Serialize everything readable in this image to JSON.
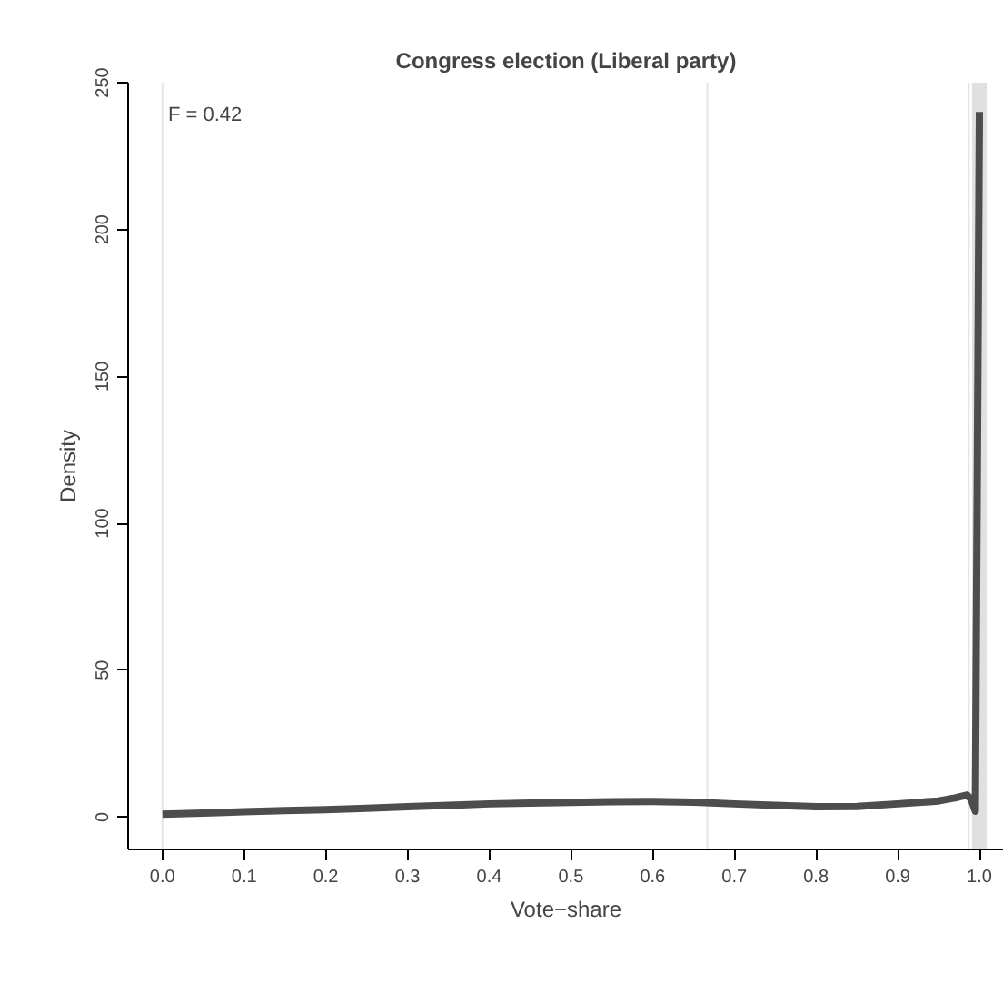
{
  "chart_data": {
    "type": "line",
    "title": "Congress election (Liberal party)",
    "xlabel": "Vote−share",
    "ylabel": "Density",
    "x": [
      0.0,
      0.05,
      0.1,
      0.15,
      0.2,
      0.25,
      0.3,
      0.35,
      0.4,
      0.45,
      0.5,
      0.55,
      0.6,
      0.65,
      0.7,
      0.75,
      0.8,
      0.85,
      0.9,
      0.95,
      0.97,
      0.985,
      0.99,
      0.995,
      1.0
    ],
    "series": [
      {
        "color": "#4d4d4d",
        "values": [
          1,
          1.4,
          1.8,
          2.2,
          2.5,
          3,
          3.5,
          4,
          4.5,
          4.8,
          5,
          5.2,
          5.3,
          5.1,
          4.5,
          4,
          3.5,
          3.6,
          4.5,
          5.5,
          6.5,
          7.5,
          6,
          2,
          240
        ]
      }
    ],
    "xlim": [
      -0.042,
      1.03
    ],
    "ylim": [
      -11,
      250
    ],
    "xticks": [
      {
        "value": 0,
        "label": "0.0"
      },
      0.1,
      0.2,
      0.3,
      0.4,
      0.5,
      0.6,
      0.7,
      0.8,
      0.9,
      {
        "value": 1,
        "label": "1.0"
      }
    ],
    "yticks": [
      0,
      50,
      100,
      150,
      200,
      250
    ],
    "ref_lines": [
      {
        "axis": "x",
        "value": 0,
        "color": "#e5e5e5"
      },
      {
        "axis": "x",
        "value": 0.667,
        "color": "#e5e5e5"
      },
      {
        "axis": "x",
        "value": 0.987,
        "color": "#e5e5e5"
      }
    ],
    "bands": [
      {
        "axis": "x",
        "from": 0.991,
        "to": 1.009,
        "color": "#e0e0e0"
      }
    ],
    "annotations": [
      "F = 0.42"
    ],
    "grid": false,
    "line_style": "solid",
    "marker": "none"
  }
}
